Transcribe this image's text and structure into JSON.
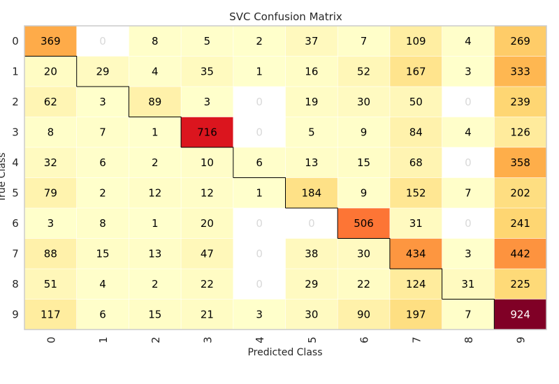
{
  "chart_data": {
    "type": "heatmap",
    "title": "SVC Confusion Matrix",
    "xlabel": "Predicted Class",
    "ylabel": "True Class",
    "x_categories": [
      "0",
      "1",
      "2",
      "3",
      "4",
      "5",
      "6",
      "7",
      "8",
      "9"
    ],
    "y_categories": [
      "0",
      "1",
      "2",
      "3",
      "4",
      "5",
      "6",
      "7",
      "8",
      "9"
    ],
    "values": [
      [
        369,
        0,
        8,
        5,
        2,
        37,
        7,
        109,
        4,
        269
      ],
      [
        20,
        29,
        4,
        35,
        1,
        16,
        52,
        167,
        3,
        333
      ],
      [
        62,
        3,
        89,
        3,
        0,
        19,
        30,
        50,
        0,
        239
      ],
      [
        8,
        7,
        1,
        716,
        0,
        5,
        9,
        84,
        4,
        126
      ],
      [
        32,
        6,
        2,
        10,
        6,
        13,
        15,
        68,
        0,
        358
      ],
      [
        79,
        2,
        12,
        12,
        1,
        184,
        9,
        152,
        7,
        202
      ],
      [
        3,
        8,
        1,
        20,
        0,
        0,
        506,
        31,
        0,
        241
      ],
      [
        88,
        15,
        13,
        47,
        0,
        38,
        30,
        434,
        3,
        442
      ],
      [
        51,
        4,
        2,
        22,
        0,
        29,
        22,
        124,
        31,
        225
      ],
      [
        117,
        6,
        15,
        21,
        3,
        30,
        90,
        197,
        7,
        924
      ]
    ],
    "colormap": "YlOrRd",
    "zero_color": "#ffffff",
    "zero_text_color": "#d9d9d9",
    "text_color": "#000000",
    "text_color_dark_cell": "#ffffff",
    "diagonal_outline": true,
    "grid": false
  }
}
